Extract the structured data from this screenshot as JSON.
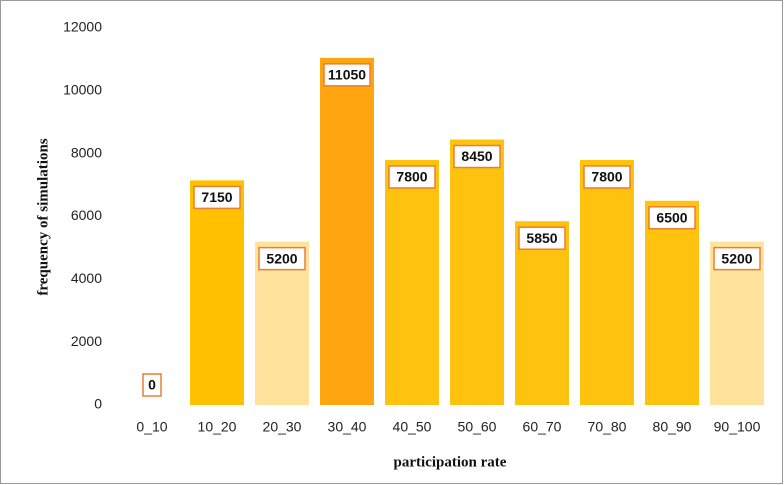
{
  "chart_data": {
    "type": "bar",
    "x_label": "participation rate",
    "y_label": "frequency of simulations",
    "categories": [
      "0_10",
      "10_20",
      "20_30",
      "30_40",
      "40_50",
      "50_60",
      "60_70",
      "70_80",
      "80_90",
      "90_100"
    ],
    "values": [
      0,
      7150,
      5200,
      11050,
      7800,
      8450,
      5850,
      7800,
      6500,
      5200
    ],
    "colors": [
      "#ffc000",
      "#ffc000",
      "#ffe29c",
      "#ffa50f",
      "#ffc20e",
      "#ffc20e",
      "#ffc20e",
      "#ffc20e",
      "#ffc20e",
      "#ffe29c"
    ],
    "label_border_color": "#ed7d31",
    "ylim": [
      0,
      12000
    ],
    "yticks": [
      0,
      2000,
      4000,
      6000,
      8000,
      10000,
      12000
    ],
    "grid": false
  }
}
